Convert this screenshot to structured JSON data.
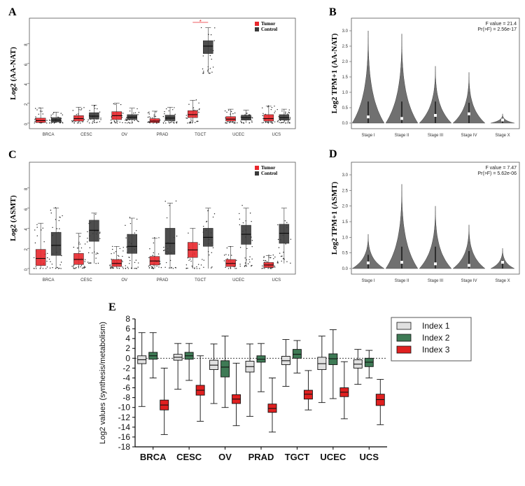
{
  "chart_data": [
    {
      "panel": "A",
      "type": "box",
      "ylabel": "Log2 (AA-NAT)",
      "categories": [
        "BRCA",
        "CESC",
        "OV",
        "PRAD",
        "TGCT",
        "UCEC",
        "UCS"
      ],
      "legend": [
        "Tumor",
        "Control"
      ],
      "legend_placement": "top-right",
      "colors": {
        "Tumor": "#e8272c",
        "Control": "#3a3a3a"
      },
      "ylim": [
        0,
        10
      ],
      "yticks": [
        0,
        2,
        4,
        6,
        8
      ],
      "series": [
        {
          "name": "Tumor",
          "box": [
            [
              0.05,
              0.25,
              0.5
            ],
            [
              0.2,
              0.45,
              0.75
            ],
            [
              0.35,
              0.75,
              1.15
            ],
            [
              0.05,
              0.2,
              0.45
            ],
            [
              0.55,
              0.85,
              1.25
            ],
            [
              0.2,
              0.4,
              0.65
            ],
            [
              0.2,
              0.45,
              0.85
            ]
          ],
          "whisker": [
            [
              0,
              1.5
            ],
            [
              0,
              1.6
            ],
            [
              0,
              2.0
            ],
            [
              0,
              1.2
            ],
            [
              0,
              2.3
            ],
            [
              0,
              1.4
            ],
            [
              0,
              1.7
            ]
          ]
        },
        {
          "name": "Control",
          "box": [
            [
              0.1,
              0.3,
              0.55
            ],
            [
              0.4,
              0.7,
              1.05
            ],
            [
              0.35,
              0.6,
              0.85
            ],
            [
              0.25,
              0.5,
              0.8
            ],
            [
              7.0,
              7.75,
              8.3
            ],
            [
              0.3,
              0.55,
              0.8
            ],
            [
              0.3,
              0.55,
              0.85
            ]
          ],
          "whisker": [
            [
              0,
              1.1
            ],
            [
              0,
              1.8
            ],
            [
              0,
              1.5
            ],
            [
              0,
              1.6
            ],
            [
              5.0,
              9.6
            ],
            [
              0,
              1.3
            ],
            [
              0,
              1.4
            ]
          ]
        }
      ],
      "annotation": "*"
    },
    {
      "panel": "B",
      "type": "violin",
      "ylabel": "Log2 TPM+1 (AA-NAT)",
      "categories": [
        "Stage I",
        "Stage II",
        "Stage III",
        "Stage IV",
        "Stage X"
      ],
      "ylim": [
        0,
        3.0
      ],
      "yticks": [
        0.0,
        0.5,
        1.0,
        1.5,
        2.0,
        2.5,
        3.0
      ],
      "max": [
        3.0,
        2.9,
        1.85,
        1.65,
        0.3
      ],
      "median": [
        0.2,
        0.15,
        0.25,
        0.3,
        0.1
      ],
      "stats": {
        "f_value": "F value = 21.4",
        "p_value": "Pr(>F) = 2.56e-17"
      }
    },
    {
      "panel": "C",
      "type": "box",
      "ylabel": "Log2 (ASMT)",
      "categories": [
        "BRCA",
        "CESC",
        "OV",
        "PRAD",
        "TGCT",
        "UCEC",
        "UCS"
      ],
      "legend": [
        "Tumor",
        "Control"
      ],
      "legend_placement": "top-right",
      "colors": {
        "Tumor": "#e8272c",
        "Control": "#3a3a3a"
      },
      "ylim": [
        0,
        10
      ],
      "yticks": [
        0,
        2,
        4,
        6,
        8
      ],
      "series": [
        {
          "name": "Tumor",
          "box": [
            [
              0.3,
              1.0,
              1.9
            ],
            [
              0.4,
              0.9,
              1.5
            ],
            [
              0.2,
              0.5,
              0.9
            ],
            [
              0.35,
              0.75,
              1.2
            ],
            [
              1.1,
              1.85,
              2.6
            ],
            [
              0.2,
              0.5,
              0.9
            ],
            [
              0.1,
              0.35,
              0.6
            ]
          ],
          "whisker": [
            [
              0,
              4.5
            ],
            [
              0,
              3.5
            ],
            [
              0,
              2.2
            ],
            [
              0,
              3.0
            ],
            [
              0,
              4.0
            ],
            [
              0,
              2.2
            ],
            [
              0,
              1.3
            ]
          ]
        },
        {
          "name": "Control",
          "box": [
            [
              1.3,
              2.3,
              3.6
            ],
            [
              2.7,
              3.8,
              4.8
            ],
            [
              1.5,
              2.2,
              3.4
            ],
            [
              1.4,
              2.5,
              4.0
            ],
            [
              2.2,
              3.1,
              4.0
            ],
            [
              2.4,
              3.4,
              4.3
            ],
            [
              2.5,
              3.5,
              4.4
            ]
          ],
          "whisker": [
            [
              0,
              6.0
            ],
            [
              0.5,
              5.5
            ],
            [
              0,
              5.0
            ],
            [
              0,
              6.5
            ],
            [
              0,
              6.0
            ],
            [
              0.2,
              6.0
            ],
            [
              0.5,
              6.0
            ]
          ]
        }
      ]
    },
    {
      "panel": "D",
      "type": "violin",
      "ylabel": "Log2 TPM+1 (ASMT)",
      "categories": [
        "Stage I",
        "Stage II",
        "Stage III",
        "Stage IV",
        "Stage X"
      ],
      "ylim": [
        0,
        3.0
      ],
      "yticks": [
        0.0,
        0.5,
        1.0,
        1.5,
        2.0,
        2.5,
        3.0
      ],
      "max": [
        1.1,
        2.7,
        2.0,
        1.4,
        0.65
      ],
      "median": [
        0.18,
        0.2,
        0.15,
        0.1,
        0.2
      ],
      "stats": {
        "f_value": "F value = 7.47",
        "p_value": "Pr(>F) = 5.62e-06"
      }
    },
    {
      "panel": "E",
      "type": "box",
      "ylabel": "Log2 values (synthesis/metabolism)",
      "categories": [
        "BRCA",
        "CESC",
        "OV",
        "PRAD",
        "TGCT",
        "UCEC",
        "UCS"
      ],
      "legend": [
        "Index 1",
        "Index 2",
        "Index 3"
      ],
      "legend_placement": "right",
      "colors": {
        "Index 1": "#e0e0e0",
        "Index 2": "#3e7a55",
        "Index 3": "#e02020"
      },
      "ylim": [
        -18,
        8
      ],
      "yticks": [
        8,
        6,
        4,
        2,
        0,
        -2,
        -4,
        -6,
        -8,
        -10,
        -12,
        -14,
        -16,
        -18
      ],
      "reference_line": 0,
      "series": [
        {
          "name": "Index 1",
          "box": [
            [
              -1.1,
              -0.3,
              0.5
            ],
            [
              -0.4,
              0.2,
              0.8
            ],
            [
              -2.3,
              -1.4,
              -0.4
            ],
            [
              -2.8,
              -1.7,
              -0.6
            ],
            [
              -1.3,
              -0.5,
              0.4
            ],
            [
              -2.3,
              -1.1,
              0.2
            ],
            [
              -2.0,
              -1.2,
              -0.3
            ]
          ],
          "whisker": [
            [
              -9.8,
              5.2
            ],
            [
              -6.3,
              3.0
            ],
            [
              -9.2,
              2.9
            ],
            [
              -11.8,
              2.9
            ],
            [
              -5.7,
              3.8
            ],
            [
              -9.0,
              4.5
            ],
            [
              -5.3,
              1.8
            ]
          ]
        },
        {
          "name": "Index 2",
          "box": [
            [
              -0.2,
              0.5,
              1.2
            ],
            [
              -0.2,
              0.5,
              1.2
            ],
            [
              -3.8,
              -1.8,
              -0.5
            ],
            [
              -0.8,
              -0.2,
              0.5
            ],
            [
              0.0,
              0.8,
              1.8
            ],
            [
              -1.3,
              -0.1,
              0.9
            ],
            [
              -1.7,
              -0.8,
              0.0
            ]
          ],
          "whisker": [
            [
              -4.0,
              5.2
            ],
            [
              -4.5,
              3.0
            ],
            [
              -10.0,
              4.5
            ],
            [
              -6.8,
              3.0
            ],
            [
              -3.0,
              3.6
            ],
            [
              -8.2,
              5.8
            ],
            [
              -4.0,
              1.6
            ]
          ]
        },
        {
          "name": "Index 3",
          "box": [
            [
              -10.5,
              -9.5,
              -8.5
            ],
            [
              -7.5,
              -6.5,
              -5.5
            ],
            [
              -9.2,
              -8.3,
              -7.4
            ],
            [
              -11.0,
              -10.2,
              -9.3
            ],
            [
              -8.3,
              -7.3,
              -6.5
            ],
            [
              -7.8,
              -6.9,
              -6.0
            ],
            [
              -9.6,
              -8.4,
              -7.3
            ]
          ],
          "whisker": [
            [
              -15.5,
              -2.0
            ],
            [
              -12.8,
              0.5
            ],
            [
              -13.7,
              -1.0
            ],
            [
              -15.0,
              -4.0
            ],
            [
              -10.5,
              -2.5
            ],
            [
              -12.3,
              -0.7
            ],
            [
              -13.5,
              -4.3
            ]
          ]
        }
      ]
    }
  ]
}
